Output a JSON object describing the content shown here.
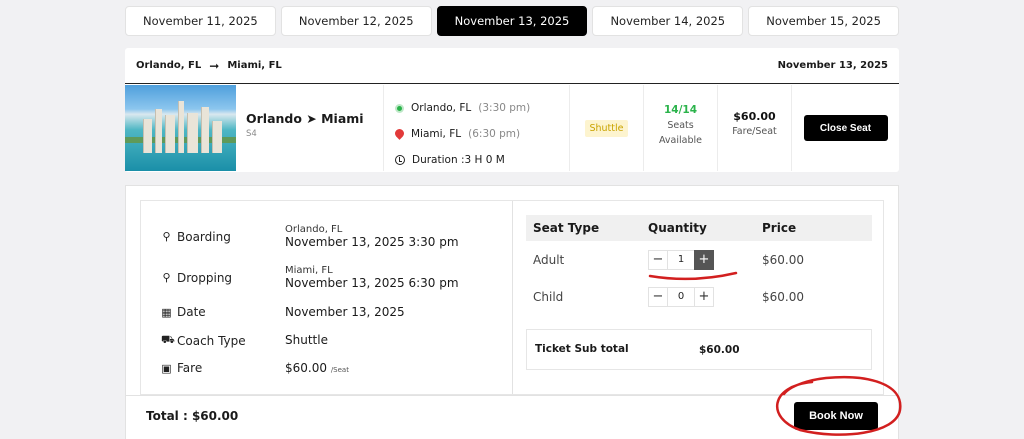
{
  "date_tabs": [
    "November 11, 2025",
    "November 12, 2025",
    "November 13, 2025",
    "November 14, 2025",
    "November 15, 2025"
  ],
  "active_date_index": 2,
  "route_header": {
    "from": "Orlando, FL",
    "to": "Miami, FL",
    "date": "November 13, 2025"
  },
  "trip": {
    "name": "Orlando ➤ Miami",
    "code": "S4",
    "boarding_city": "Orlando, FL",
    "boarding_time": "(3:30 pm)",
    "dropping_city": "Miami, FL",
    "dropping_time": "(6:30 pm)",
    "duration": "Duration :3 H 0 M",
    "coach_type": "Shuttle",
    "seats_count": "14/14",
    "seats_label_1": "Seats",
    "seats_label_2": "Available",
    "fare": "$60.00",
    "fare_label": "Fare/Seat",
    "close_label": "Close Seat"
  },
  "details": {
    "boarding_label": "Boarding",
    "boarding_city": "Orlando, FL",
    "boarding_datetime": "November 13, 2025 3:30 pm",
    "dropping_label": "Dropping",
    "dropping_city": "Miami, FL",
    "dropping_datetime": "November 13, 2025 6:30 pm",
    "date_label": "Date",
    "date_value": "November 13, 2025",
    "coach_label": "Coach Type",
    "coach_value": "Shuttle",
    "fare_label": "Fare",
    "fare_value": "$60.00",
    "fare_unit": "/Seat"
  },
  "seat_table": {
    "headers": [
      "Seat Type",
      "Quantity",
      "Price"
    ],
    "rows": [
      {
        "type": "Adult",
        "qty": "1",
        "price": "$60.00"
      },
      {
        "type": "Child",
        "qty": "0",
        "price": "$60.00"
      }
    ],
    "subtotal_label": "Ticket Sub total",
    "subtotal_value": "$60.00"
  },
  "total_label": "Total : $60.00",
  "book_label": "Book Now",
  "colors": {
    "accent": "#000000",
    "available": "#2bb34b",
    "annotation": "#d21f1f",
    "badge_bg": "#fdf4cf",
    "badge_text": "#c9a300"
  },
  "icons": [
    "arrow-right-icon",
    "green-dot-icon",
    "map-pin-icon",
    "clock-icon",
    "calendar-icon",
    "bus-icon",
    "money-icon",
    "minus-icon",
    "plus-icon"
  ]
}
